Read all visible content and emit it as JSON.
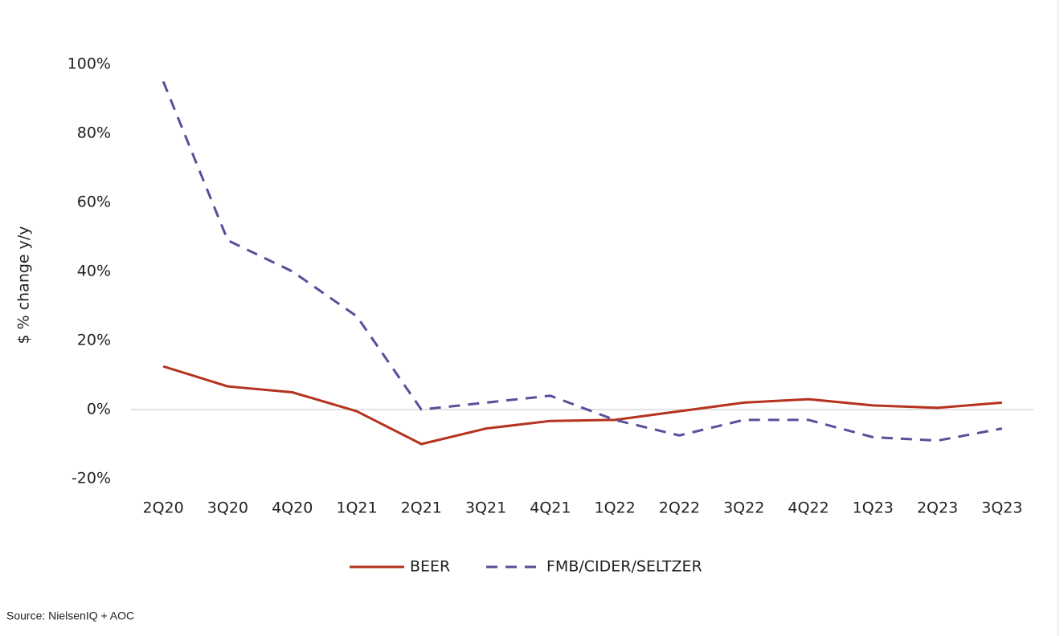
{
  "chart_data": {
    "type": "line",
    "y_axis_label": "$ % change y/y",
    "source": "Source: NielsenIQ + AOC",
    "categories": [
      "2Q20",
      "3Q20",
      "4Q20",
      "1Q21",
      "2Q21",
      "3Q21",
      "4Q21",
      "1Q22",
      "2Q22",
      "3Q22",
      "4Q22",
      "1Q23",
      "2Q23",
      "3Q23"
    ],
    "series": [
      {
        "name": "BEER",
        "color": "#b5321f",
        "dash": false,
        "values": [
          12.5,
          6.7,
          5,
          -0.5,
          -10,
          -5.5,
          -3.3,
          -3,
          -0.5,
          2,
          3,
          1.2,
          0.5,
          2
        ]
      },
      {
        "name": "FMB/CIDER/SELTZER",
        "color": "#5a4e9a",
        "dash": true,
        "values": [
          95,
          49,
          40,
          27,
          0,
          2,
          4,
          -3,
          -7.5,
          -3,
          -3,
          -8,
          -9,
          -5.5
        ]
      }
    ],
    "ylim": [
      -20,
      100
    ],
    "yticks": [
      {
        "value": -20,
        "label": "-20%"
      },
      {
        "value": 0,
        "label": "0%"
      },
      {
        "value": 20,
        "label": "20%"
      },
      {
        "value": 40,
        "label": "40%"
      },
      {
        "value": 60,
        "label": "60%"
      },
      {
        "value": 80,
        "label": "80%"
      },
      {
        "value": 100,
        "label": "100%"
      }
    ],
    "grid": false,
    "legend": "bottom"
  }
}
